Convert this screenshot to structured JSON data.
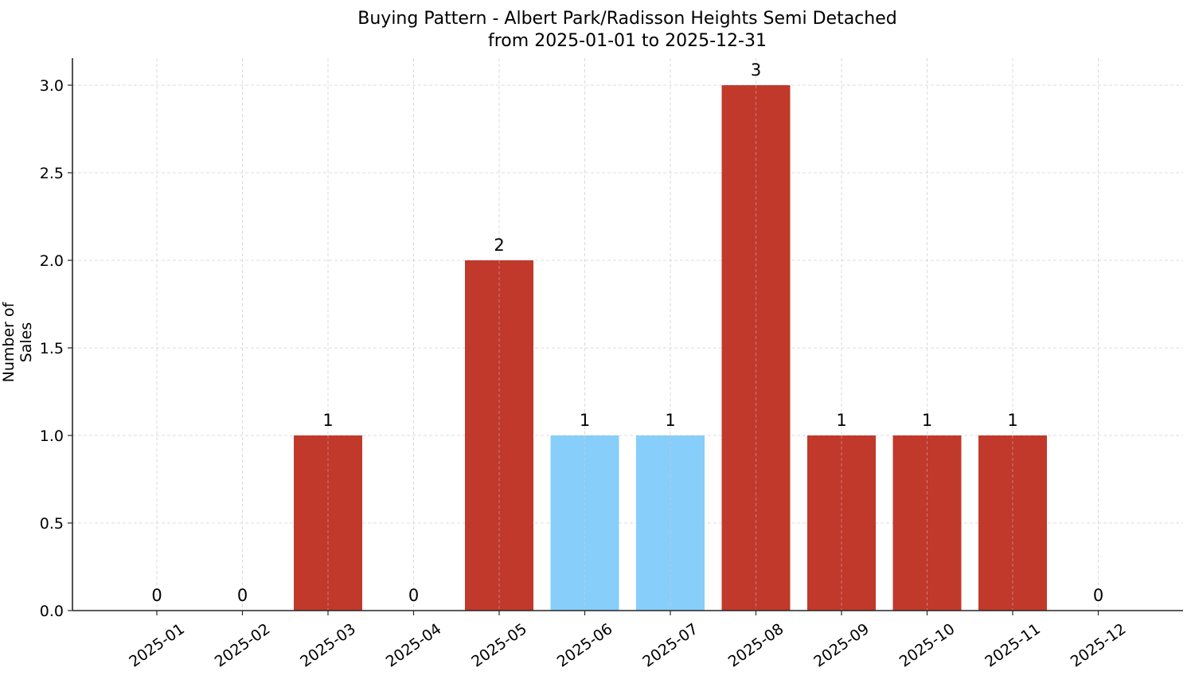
{
  "chart_data": {
    "type": "bar",
    "title": "Buying Pattern - Albert Park/Radisson Heights Semi Detached",
    "subtitle": "from 2025-01-01 to 2025-12-31",
    "xlabel": "",
    "ylabel": "Number of Sales",
    "categories": [
      "2025-01",
      "2025-02",
      "2025-03",
      "2025-04",
      "2025-05",
      "2025-06",
      "2025-07",
      "2025-08",
      "2025-09",
      "2025-10",
      "2025-11",
      "2025-12"
    ],
    "values": [
      0,
      0,
      1,
      0,
      2,
      1,
      1,
      3,
      1,
      1,
      1,
      0
    ],
    "bar_colors": [
      "#C0392B",
      "#C0392B",
      "#C0392B",
      "#C0392B",
      "#C0392B",
      "#87CEFA",
      "#87CEFA",
      "#C0392B",
      "#C0392B",
      "#C0392B",
      "#C0392B",
      "#C0392B"
    ],
    "data_labels": [
      "0",
      "0",
      "1",
      "0",
      "2",
      "1",
      "1",
      "3",
      "1",
      "1",
      "1",
      "0"
    ],
    "ylim": [
      0,
      3.15
    ],
    "yticks": [
      0.0,
      0.5,
      1.0,
      1.5,
      2.0,
      2.5,
      3.0
    ],
    "ytick_labels": [
      "0.0",
      "0.5",
      "1.0",
      "1.5",
      "2.0",
      "2.5",
      "3.0"
    ],
    "grid": true,
    "legend": null
  },
  "colors": {
    "primary": "#C0392B",
    "highlight": "#87CEFA",
    "grid": "#d3d3d3",
    "axis": "#262626"
  }
}
